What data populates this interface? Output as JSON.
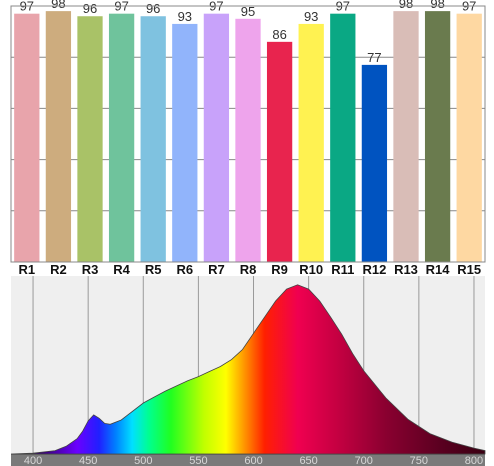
{
  "chart_data": [
    {
      "type": "bar",
      "categories": [
        "R1",
        "R2",
        "R3",
        "R4",
        "R5",
        "R6",
        "R7",
        "R8",
        "R9",
        "R10",
        "R11",
        "R12",
        "R13",
        "R14",
        "R15"
      ],
      "values": [
        97,
        98,
        96,
        97,
        96,
        93,
        97,
        95,
        86,
        93,
        97,
        77,
        98,
        98,
        97
      ],
      "data_labels": [
        "97",
        "98",
        "96",
        "97",
        "96",
        "93",
        "97",
        "95",
        "86",
        "93",
        "97",
        "77",
        "98",
        "98",
        "97"
      ],
      "colors": [
        "#e8a4ab",
        "#cdac7e",
        "#a9c267",
        "#6fc39c",
        "#7fc2e0",
        "#91b4fb",
        "#c8a2fa",
        "#eea4ec",
        "#e8244e",
        "#fff251",
        "#0aa884",
        "#0053c0",
        "#d9bdb7",
        "#6a7b4e",
        "#fed8a2"
      ],
      "ylim": [
        0,
        100
      ],
      "grid": true,
      "grid_y": [
        20,
        40,
        60,
        80
      ],
      "title": "",
      "xlabel": "",
      "ylabel": ""
    },
    {
      "type": "area",
      "x": [
        380,
        400,
        420,
        430,
        440,
        445,
        450,
        455,
        460,
        465,
        470,
        480,
        490,
        500,
        510,
        520,
        530,
        540,
        550,
        560,
        570,
        580,
        590,
        600,
        610,
        620,
        630,
        640,
        650,
        660,
        670,
        680,
        690,
        700,
        720,
        740,
        760,
        780,
        800,
        810
      ],
      "y": [
        0,
        1,
        4,
        9,
        18,
        27,
        39,
        46,
        42,
        36,
        35,
        40,
        50,
        60,
        67,
        74,
        80,
        86,
        91,
        97,
        103,
        111,
        123,
        142,
        161,
        180,
        194,
        199,
        194,
        180,
        161,
        141,
        118,
        98,
        66,
        41,
        24,
        14,
        7,
        4
      ],
      "xlim": [
        380,
        810
      ],
      "ylim": [
        0,
        200
      ],
      "x_ticks": [
        "400",
        "450",
        "500",
        "550",
        "600",
        "650",
        "700",
        "750",
        "800"
      ],
      "grid": true,
      "title": "",
      "xlabel": "",
      "ylabel": ""
    }
  ]
}
